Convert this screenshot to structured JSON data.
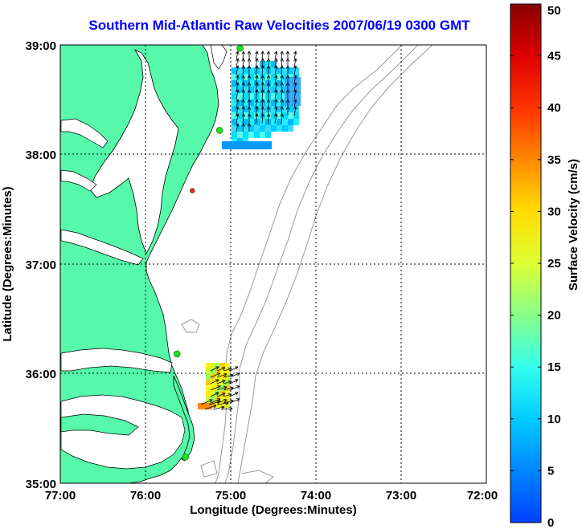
{
  "title": "Southern Mid-Atlantic Raw Velocities 2007/06/19 0300 GMT",
  "x_axis": {
    "label": "Longitude (Degrees:Minutes)",
    "ticks": [
      "77:00",
      "76:00",
      "75:00",
      "74:00",
      "73:00",
      "72:00"
    ]
  },
  "y_axis": {
    "label": "Latitude (Degrees:Minutes)",
    "ticks": [
      "39:00",
      "38:00",
      "37:00",
      "36:00",
      "35:00"
    ]
  },
  "colorbar": {
    "label": "Surface Velocity (cm/s)",
    "range": [
      0,
      50
    ],
    "ticks": [
      "0",
      "5",
      "10",
      "15",
      "20",
      "25",
      "30",
      "35",
      "40",
      "45",
      "50"
    ]
  },
  "colors": {
    "title": "#0000ff",
    "land": "#55f9a9",
    "coastline": "#000000",
    "bathymetry": "#999999",
    "grid": "#000000",
    "station_active": "#22dd22",
    "station_alert": "#ee2222"
  },
  "map_extent": {
    "lon_range": [
      -77,
      -72
    ],
    "lat_range": [
      35,
      39
    ]
  },
  "grid": true,
  "stations": [
    {
      "lon": -74.89,
      "lat": 38.97,
      "status": "active"
    },
    {
      "lon": -75.13,
      "lat": 38.22,
      "status": "active"
    },
    {
      "lon": -75.45,
      "lat": 37.67,
      "status": "alert"
    },
    {
      "lon": -75.63,
      "lat": 36.18,
      "status": "active"
    },
    {
      "lon": -75.53,
      "lat": 35.24,
      "status": "active"
    }
  ],
  "icons": {
    "station": "radar-station-marker",
    "vector": "current-arrow"
  }
}
